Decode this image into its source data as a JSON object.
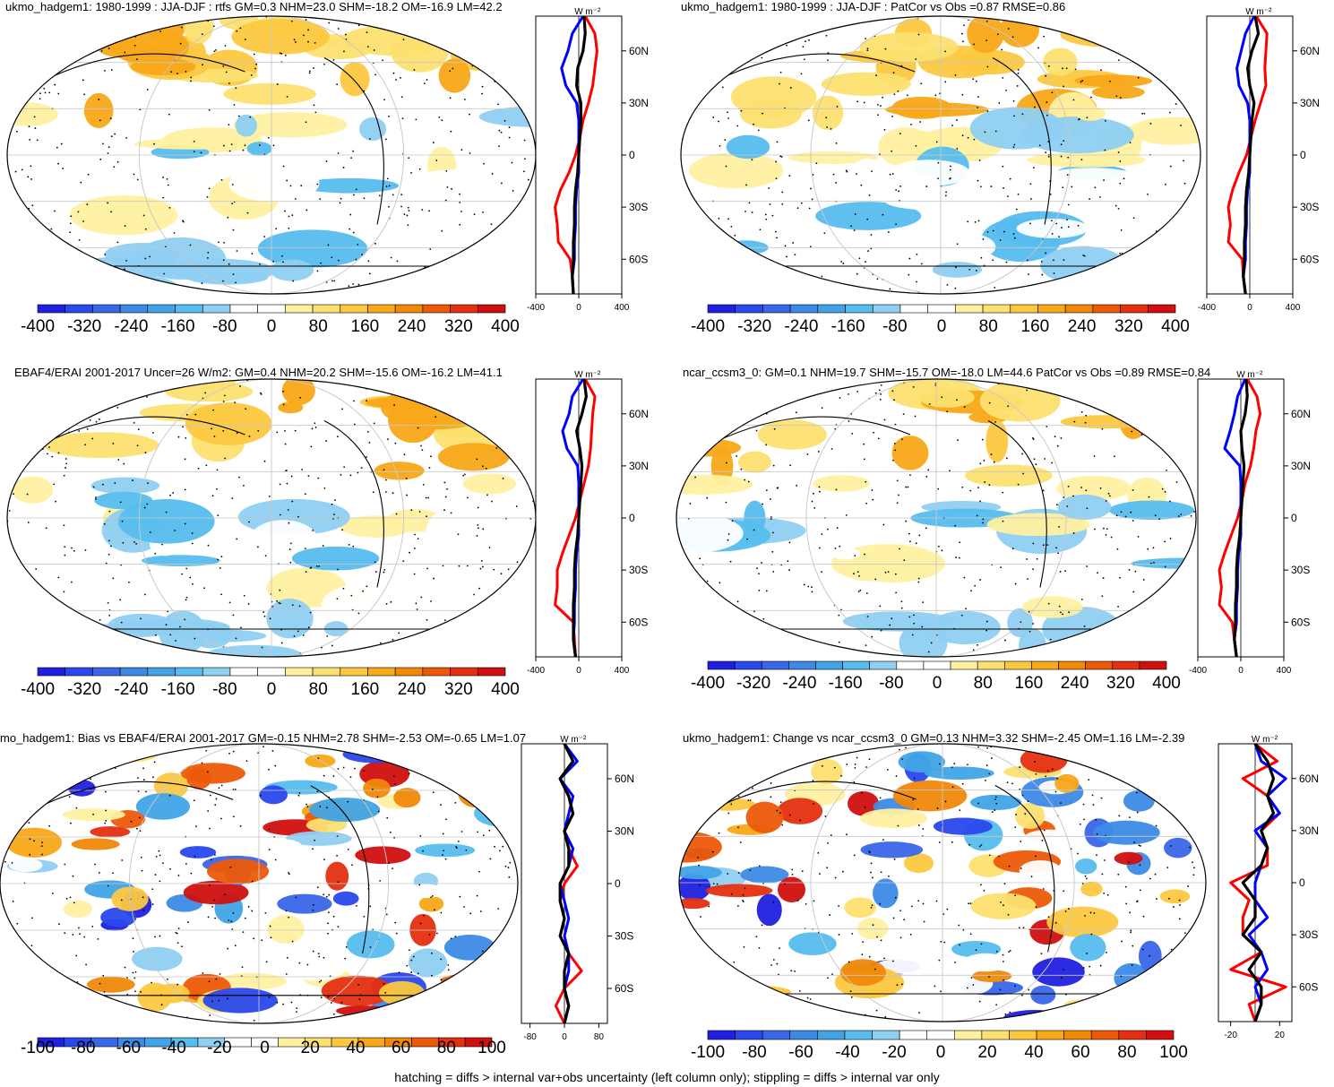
{
  "footnote": "hatching = diffs > internal var+obs uncertainty (left column only); stippling = diffs > internal var only",
  "colors": {
    "scale": [
      "#2020e0",
      "#2a48ec",
      "#3a66e8",
      "#3c8ae6",
      "#42a4e6",
      "#56bdee",
      "#8ecff2",
      "#ffffff",
      "#ffffff",
      "#fff0a0",
      "#fce070",
      "#fcc840",
      "#f8a818",
      "#f08808",
      "#ec5a08",
      "#e43010",
      "#d01010"
    ],
    "series_red": "#ff0000",
    "series_blue": "#0000ff",
    "series_black": "#000000"
  },
  "chart_data": [
    {
      "type": "map-with-zonal-profile",
      "title": "ukmo_hadgem1: 1980-1999 : JJA-DJF : rtfs GM=0.3 NHM=23.0 SHM=-18.2 OM=-16.9 LM=42.2",
      "profile_unit": "W m⁻²",
      "lat_ticks": [
        "60N",
        "30N",
        "0",
        "30S",
        "60S"
      ],
      "profile_xticks": [
        "-400",
        "0",
        "400"
      ],
      "xlim": [
        -400,
        400
      ],
      "colorbar_labels": [
        "-400",
        "-320",
        "-240",
        "-160",
        "-80",
        "0",
        "80",
        "160",
        "240",
        "320",
        "400"
      ],
      "lat": [
        80,
        70,
        60,
        50,
        40,
        30,
        20,
        10,
        0,
        -10,
        -20,
        -30,
        -40,
        -50,
        -60,
        -70,
        -80
      ],
      "series": [
        {
          "name": "red",
          "values": [
            60,
            150,
            170,
            150,
            130,
            90,
            40,
            10,
            -30,
            -90,
            -170,
            -220,
            -200,
            -190,
            -80,
            -60,
            -50
          ]
        },
        {
          "name": "blue",
          "values": [
            40,
            -60,
            -100,
            -160,
            -120,
            -20,
            0,
            0,
            0,
            0,
            -20,
            -30,
            -30,
            -40,
            -40,
            -60,
            -50
          ]
        },
        {
          "name": "black",
          "values": [
            50,
            60,
            40,
            -10,
            -20,
            20,
            20,
            10,
            0,
            -10,
            -30,
            -40,
            -40,
            -50,
            -50,
            -60,
            -50
          ]
        }
      ]
    },
    {
      "type": "map-with-zonal-profile",
      "title": "ukmo_hadgem1: 1980-1999 : JJA-DJF : PatCor vs Obs =0.87 RMSE=0.86",
      "profile_unit": "W m⁻²",
      "lat_ticks": [
        "60N",
        "30N",
        "0",
        "30S",
        "60S"
      ],
      "profile_xticks": [
        "-400",
        "0",
        "400"
      ],
      "xlim": [
        -400,
        400
      ],
      "colorbar_labels": [
        "-400",
        "-320",
        "-240",
        "-160",
        "-80",
        "0",
        "80",
        "160",
        "240",
        "320",
        "400"
      ],
      "lat": [
        80,
        70,
        60,
        50,
        40,
        30,
        20,
        10,
        0,
        -10,
        -20,
        -30,
        -40,
        -50,
        -60,
        -70,
        -80
      ],
      "series": [
        {
          "name": "red",
          "values": [
            60,
            160,
            150,
            140,
            150,
            100,
            50,
            10,
            -30,
            -100,
            -160,
            -200,
            -180,
            -200,
            -70,
            -60,
            -40
          ]
        },
        {
          "name": "blue",
          "values": [
            40,
            -40,
            -80,
            -120,
            -100,
            -20,
            0,
            0,
            0,
            0,
            -20,
            -30,
            -30,
            -40,
            -40,
            -60,
            -40
          ]
        },
        {
          "name": "black",
          "values": [
            50,
            80,
            20,
            -20,
            0,
            40,
            20,
            10,
            0,
            -10,
            -30,
            -40,
            -40,
            -50,
            -50,
            -60,
            -40
          ]
        }
      ]
    },
    {
      "type": "map-with-zonal-profile",
      "title": "EBAF4/ERAI 2001-2017 Uncer=26 W/m2: GM=0.4 NHM=20.2 SHM=-15.6 OM=-16.2 LM=41.1",
      "profile_unit": "W m⁻²",
      "lat_ticks": [
        "60N",
        "30N",
        "0",
        "30S",
        "60S"
      ],
      "profile_xticks": [
        "-400",
        "0",
        "400"
      ],
      "xlim": [
        -400,
        400
      ],
      "colorbar_labels": [
        "-400",
        "-320",
        "-240",
        "-160",
        "-80",
        "0",
        "80",
        "160",
        "240",
        "320",
        "400"
      ],
      "lat": [
        80,
        70,
        60,
        50,
        40,
        30,
        20,
        10,
        0,
        -10,
        -20,
        -30,
        -40,
        -50,
        -60,
        -70,
        -80
      ],
      "series": [
        {
          "name": "red",
          "values": [
            60,
            150,
            130,
            120,
            110,
            90,
            50,
            10,
            -30,
            -90,
            -150,
            -200,
            -200,
            -220,
            -50,
            -40,
            -30
          ]
        },
        {
          "name": "blue",
          "values": [
            40,
            -60,
            -90,
            -150,
            -110,
            -10,
            0,
            0,
            0,
            0,
            -20,
            -30,
            -30,
            -40,
            -40,
            -50,
            -30
          ]
        },
        {
          "name": "black",
          "values": [
            50,
            70,
            30,
            -20,
            10,
            30,
            20,
            10,
            0,
            -10,
            -30,
            -40,
            -40,
            -50,
            -50,
            -50,
            -30
          ]
        }
      ]
    },
    {
      "type": "map-with-zonal-profile",
      "title": "ncar_ccsm3_0: GM=0.1 NHM=19.7 SHM=-15.7 OM=-18.0 LM=44.6 PatCor vs Obs =0.89 RMSE=0.84",
      "profile_unit": "W m⁻²",
      "lat_ticks": [
        "60N",
        "30N",
        "0",
        "30S",
        "60S"
      ],
      "profile_xticks": [
        "-400",
        "0",
        "400"
      ],
      "xlim": [
        -400,
        400
      ],
      "colorbar_labels": [
        "-400",
        "-320",
        "-240",
        "-160",
        "-80",
        "0",
        "80",
        "160",
        "240",
        "320",
        "400"
      ],
      "lat": [
        80,
        70,
        60,
        50,
        40,
        30,
        20,
        10,
        0,
        -10,
        -20,
        -30,
        -40,
        -50,
        -60,
        -70,
        -80
      ],
      "series": [
        {
          "name": "red",
          "values": [
            60,
            150,
            180,
            140,
            120,
            90,
            40,
            10,
            -30,
            -90,
            -150,
            -200,
            -180,
            -200,
            -80,
            -60,
            -40
          ]
        },
        {
          "name": "blue",
          "values": [
            40,
            -30,
            -60,
            -100,
            -150,
            -10,
            0,
            0,
            0,
            0,
            -20,
            -30,
            -30,
            -40,
            -40,
            -60,
            -40
          ]
        },
        {
          "name": "black",
          "values": [
            50,
            60,
            40,
            0,
            10,
            30,
            20,
            10,
            0,
            -10,
            -30,
            -40,
            -40,
            -50,
            -50,
            -60,
            -40
          ]
        }
      ]
    },
    {
      "type": "map-with-zonal-profile",
      "title": "mo_hadgem1: Bias vs EBAF4/ERAI 2001-2017 GM=-0.15 NHM=2.78 SHM=-2.53 OM=-0.65 LM=1.07",
      "profile_unit": "W m⁻²",
      "lat_ticks": [
        "60N",
        "30N",
        "0",
        "30S",
        "60S"
      ],
      "profile_xticks": [
        "-80",
        "0",
        "80"
      ],
      "xlim": [
        -100,
        100
      ],
      "colorbar_labels": [
        "-100",
        "-80",
        "-60",
        "-40",
        "-20",
        "0",
        "20",
        "40",
        "60",
        "80",
        "100"
      ],
      "lat": [
        80,
        70,
        60,
        50,
        40,
        30,
        20,
        10,
        0,
        -10,
        -20,
        -30,
        -40,
        -50,
        -60,
        -70,
        -80
      ],
      "series": [
        {
          "name": "red",
          "values": [
            0,
            20,
            -10,
            10,
            20,
            0,
            10,
            30,
            0,
            -10,
            0,
            -10,
            10,
            40,
            0,
            -20,
            0
          ]
        },
        {
          "name": "blue",
          "values": [
            0,
            30,
            -10,
            20,
            10,
            0,
            20,
            10,
            -10,
            0,
            10,
            0,
            10,
            10,
            0,
            10,
            0
          ]
        },
        {
          "name": "black",
          "values": [
            0,
            20,
            -10,
            10,
            20,
            0,
            10,
            10,
            -10,
            -10,
            0,
            -10,
            10,
            0,
            0,
            10,
            0
          ]
        }
      ]
    },
    {
      "type": "map-with-zonal-profile",
      "title": "ukmo_hadgem1: Change vs ncar_ccsm3_0 GM=0.13 NHM=3.32 SHM=-2.45 OM=1.16 LM=-2.39",
      "profile_unit": "W m⁻²",
      "lat_ticks": [
        "60N",
        "30N",
        "0",
        "30S",
        "60S"
      ],
      "profile_xticks": [
        "-20",
        "20"
      ],
      "xlim": [
        -30,
        30
      ],
      "colorbar_labels": [
        "-100",
        "-80",
        "-60",
        "-40",
        "-20",
        "0",
        "20",
        "40",
        "60",
        "80",
        "100"
      ],
      "lat": [
        80,
        70,
        60,
        50,
        40,
        30,
        20,
        10,
        0,
        -10,
        -20,
        -30,
        -40,
        -50,
        -60,
        -70,
        -80
      ],
      "series": [
        {
          "name": "red",
          "values": [
            0,
            18,
            -10,
            10,
            20,
            5,
            10,
            10,
            -20,
            -5,
            -10,
            -10,
            5,
            -20,
            25,
            -5,
            0
          ]
        },
        {
          "name": "blue",
          "values": [
            0,
            5,
            25,
            10,
            20,
            0,
            10,
            5,
            0,
            0,
            10,
            -5,
            5,
            10,
            0,
            5,
            0
          ]
        },
        {
          "name": "black",
          "values": [
            0,
            10,
            15,
            10,
            15,
            5,
            10,
            5,
            -10,
            0,
            0,
            -10,
            5,
            -5,
            5,
            5,
            0
          ]
        }
      ]
    }
  ]
}
